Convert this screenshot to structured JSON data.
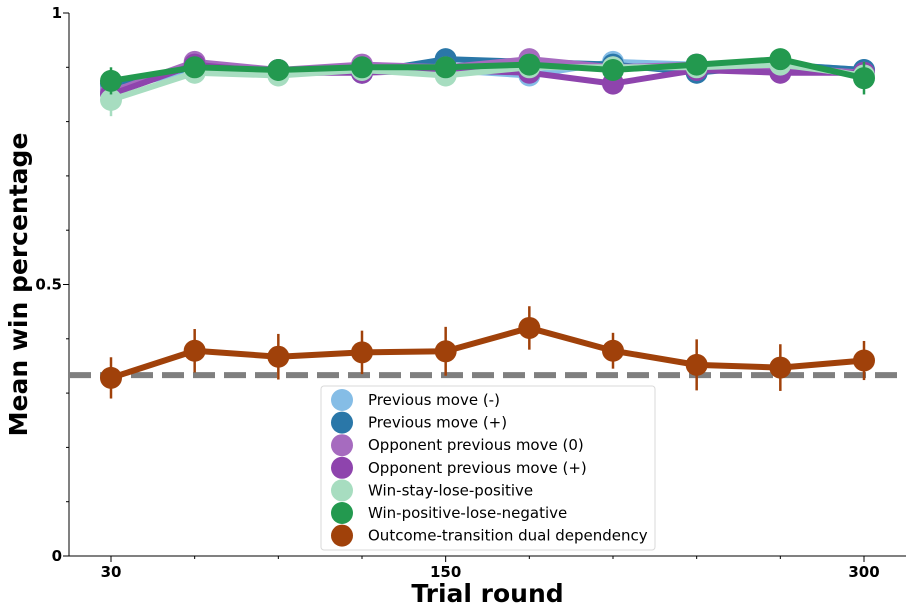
{
  "chart_data": {
    "type": "line",
    "title": "",
    "xlabel": "Trial round",
    "ylabel": "Mean win percentage",
    "x": [
      30,
      60,
      90,
      120,
      150,
      180,
      210,
      240,
      270,
      300
    ],
    "xlim": [
      30,
      300
    ],
    "ylim": [
      0,
      1
    ],
    "xticks": [
      30,
      150,
      300
    ],
    "xtick_labels": [
      "30",
      "150",
      "300"
    ],
    "yticks": [
      0,
      0.5,
      1
    ],
    "ytick_labels": [
      "0",
      "0.5",
      "1"
    ],
    "reference_line": {
      "y": 0.333,
      "style": "dashed",
      "color": "#7f7f7f"
    },
    "legend_position": "lower-center",
    "series": [
      {
        "name": "Previous move (-)",
        "color": "#85bde6",
        "values": [
          0.86,
          0.895,
          0.895,
          0.895,
          0.895,
          0.885,
          0.91,
          0.905,
          0.905,
          0.895
        ],
        "errors": [
          0.02,
          0.015,
          0.02,
          0.015,
          0.015,
          0.015,
          0.015,
          0.015,
          0.015,
          0.015
        ]
      },
      {
        "name": "Previous move (+)",
        "color": "#2a77a8",
        "values": [
          0.87,
          0.9,
          0.895,
          0.89,
          0.915,
          0.91,
          0.905,
          0.89,
          0.905,
          0.895
        ],
        "errors": [
          0.02,
          0.015,
          0.02,
          0.015,
          0.015,
          0.015,
          0.015,
          0.02,
          0.015,
          0.015
        ]
      },
      {
        "name": "Opponent previous move (0)",
        "color": "#a66bbf",
        "values": [
          0.855,
          0.91,
          0.895,
          0.905,
          0.9,
          0.915,
          0.9,
          0.905,
          0.9,
          0.89
        ],
        "errors": [
          0.02,
          0.015,
          0.02,
          0.015,
          0.015,
          0.015,
          0.015,
          0.015,
          0.015,
          0.015
        ]
      },
      {
        "name": "Opponent previous move (+)",
        "color": "#8e44ad",
        "values": [
          0.85,
          0.905,
          0.89,
          0.89,
          0.895,
          0.89,
          0.87,
          0.895,
          0.89,
          0.89
        ],
        "errors": [
          0.03,
          0.015,
          0.02,
          0.02,
          0.015,
          0.015,
          0.02,
          0.015,
          0.02,
          0.015
        ]
      },
      {
        "name": "Win-stay-lose-positive",
        "color": "#a7ddc0",
        "values": [
          0.84,
          0.89,
          0.885,
          0.895,
          0.885,
          0.9,
          0.9,
          0.9,
          0.905,
          0.885
        ],
        "errors": [
          0.03,
          0.02,
          0.02,
          0.015,
          0.02,
          0.015,
          0.015,
          0.015,
          0.015,
          0.015
        ]
      },
      {
        "name": "Win-positive-lose-negative",
        "color": "#23994f",
        "values": [
          0.875,
          0.9,
          0.895,
          0.9,
          0.9,
          0.905,
          0.895,
          0.905,
          0.915,
          0.88
        ],
        "errors": [
          0.025,
          0.015,
          0.02,
          0.015,
          0.015,
          0.015,
          0.015,
          0.015,
          0.015,
          0.03
        ]
      },
      {
        "name": "Outcome-transition dual dependency",
        "color": "#a0410a",
        "values": [
          0.328,
          0.378,
          0.367,
          0.375,
          0.377,
          0.42,
          0.378,
          0.352,
          0.347,
          0.36
        ],
        "errors": [
          0.038,
          0.04,
          0.042,
          0.04,
          0.045,
          0.04,
          0.033,
          0.047,
          0.043,
          0.036
        ]
      }
    ]
  }
}
